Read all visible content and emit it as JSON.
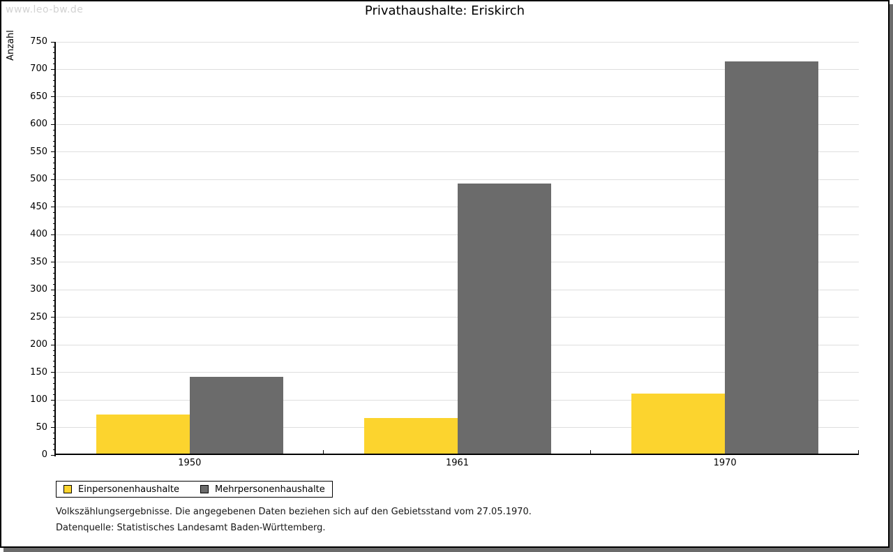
{
  "watermark": "www.leo-bw.de",
  "title": "Privathaushalte: Eriskirch",
  "chart_data": {
    "type": "bar",
    "title": "Privathaushalte: Eriskirch",
    "categories": [
      "1950",
      "1961",
      "1970"
    ],
    "series": [
      {
        "name": "Einpersonenhaushalte",
        "color": "#FCD42E",
        "values": [
          71,
          65,
          109
        ]
      },
      {
        "name": "Mehrpersonenhaushalte",
        "color": "#6B6B6B",
        "values": [
          139,
          490,
          712
        ]
      }
    ],
    "xlabel": "",
    "ylabel": "Anzahl",
    "ylim": [
      0,
      750
    ],
    "ytick_step": 50,
    "minor_tick_step": 10,
    "grid": true,
    "legend_position": "bottom-left",
    "colors": {
      "grid": "#dedede",
      "axis": "#000000",
      "shadow": "#6b6b6b"
    }
  },
  "footer": {
    "line1": "Volkszählungsergebnisse. Die angegebenen Daten beziehen sich auf den Gebietsstand vom 27.05.1970.",
    "line2": "Datenquelle: Statistisches Landesamt Baden-Württemberg."
  }
}
